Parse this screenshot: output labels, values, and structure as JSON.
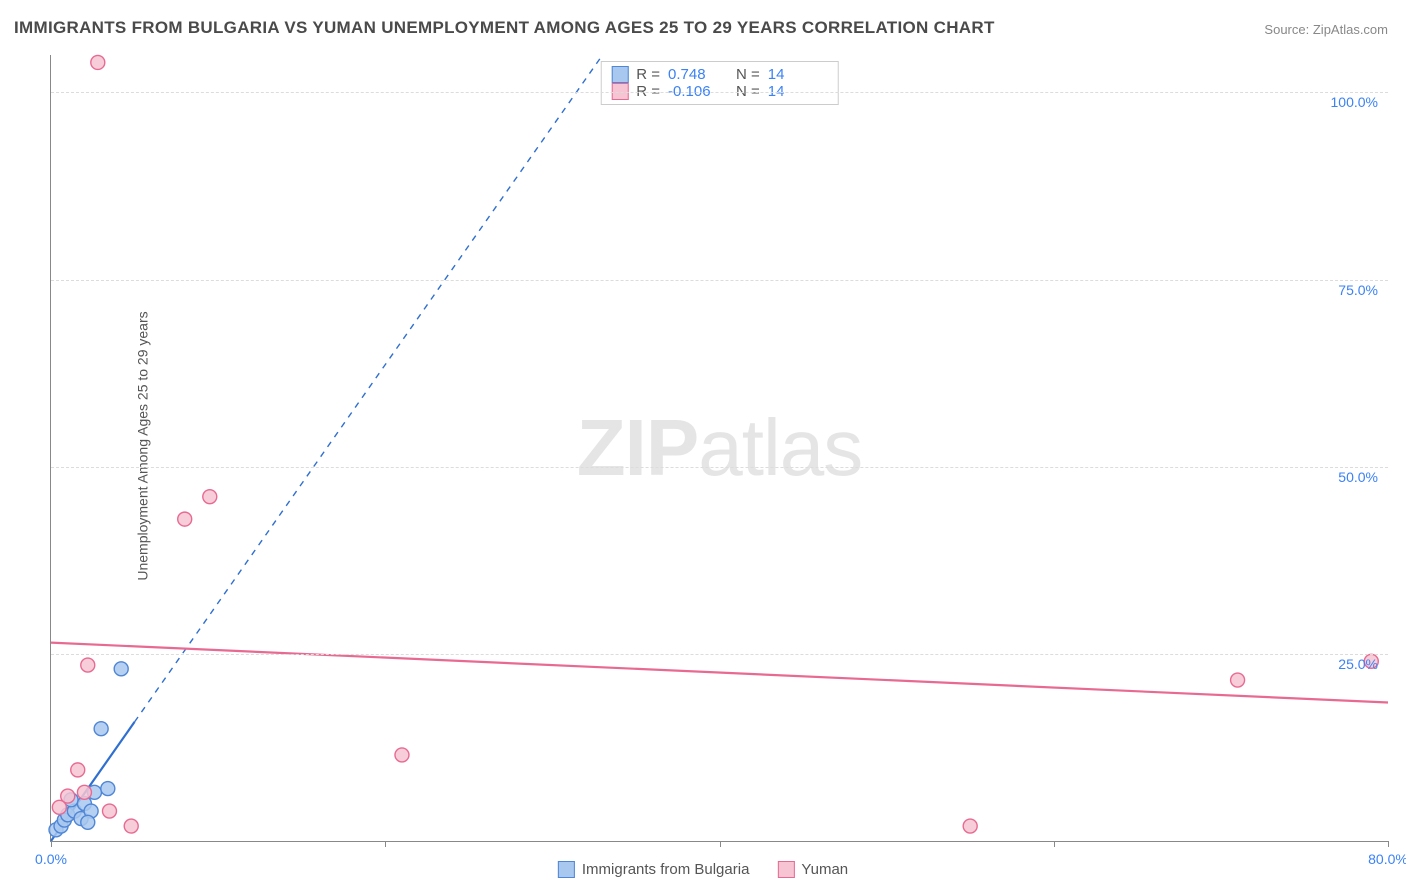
{
  "title": "IMMIGRANTS FROM BULGARIA VS YUMAN UNEMPLOYMENT AMONG AGES 25 TO 29 YEARS CORRELATION CHART",
  "source_label": "Source:",
  "source_site": "ZipAtlas.com",
  "y_axis_label": "Unemployment Among Ages 25 to 29 years",
  "watermark_bold": "ZIP",
  "watermark_light": "atlas",
  "chart": {
    "type": "scatter",
    "xlim": [
      0,
      80
    ],
    "ylim": [
      0,
      105
    ],
    "x_ticks": [
      0,
      20,
      40,
      60,
      80
    ],
    "x_tick_labels": [
      "0.0%",
      "",
      "",
      "",
      "80.0%"
    ],
    "y_ticks": [
      25,
      50,
      75,
      100
    ],
    "y_tick_labels": [
      "25.0%",
      "50.0%",
      "75.0%",
      "100.0%"
    ],
    "grid_color": "#dcdcdc",
    "background_color": "#ffffff",
    "series": [
      {
        "name": "Immigrants from Bulgaria",
        "marker_fill": "#a9c8ef",
        "marker_stroke": "#4f86d6",
        "marker_radius": 7,
        "line_color": "#2f6fd0",
        "line_width": 2.2,
        "line_dash_after_x": 5,
        "R": 0.748,
        "N": 14,
        "trend": {
          "x1": 0,
          "y1": 0,
          "x2": 33,
          "y2": 105
        },
        "points": [
          {
            "x": 0.3,
            "y": 1.5
          },
          {
            "x": 0.6,
            "y": 2.0
          },
          {
            "x": 0.8,
            "y": 2.8
          },
          {
            "x": 1.0,
            "y": 3.5
          },
          {
            "x": 1.4,
            "y": 4.0
          },
          {
            "x": 1.2,
            "y": 5.5
          },
          {
            "x": 1.8,
            "y": 3.0
          },
          {
            "x": 2.0,
            "y": 5.0
          },
          {
            "x": 2.6,
            "y": 6.5
          },
          {
            "x": 2.4,
            "y": 4.0
          },
          {
            "x": 3.4,
            "y": 7.0
          },
          {
            "x": 3.0,
            "y": 15.0
          },
          {
            "x": 4.2,
            "y": 23.0
          },
          {
            "x": 2.2,
            "y": 2.5
          }
        ]
      },
      {
        "name": "Yuman",
        "marker_fill": "#f6c4d2",
        "marker_stroke": "#e86a92",
        "marker_radius": 7,
        "line_color": "#e86a92",
        "line_width": 2.2,
        "R": -0.106,
        "N": 14,
        "trend": {
          "x1": 0,
          "y1": 26.5,
          "x2": 80,
          "y2": 18.5
        },
        "points": [
          {
            "x": 2.8,
            "y": 104
          },
          {
            "x": 9.5,
            "y": 46
          },
          {
            "x": 8.0,
            "y": 43
          },
          {
            "x": 2.2,
            "y": 23.5
          },
          {
            "x": 21.0,
            "y": 11.5
          },
          {
            "x": 1.6,
            "y": 9.5
          },
          {
            "x": 0.5,
            "y": 4.5
          },
          {
            "x": 1.0,
            "y": 6.0
          },
          {
            "x": 4.8,
            "y": 2.0
          },
          {
            "x": 3.5,
            "y": 4.0
          },
          {
            "x": 2.0,
            "y": 6.5
          },
          {
            "x": 55.0,
            "y": 2.0
          },
          {
            "x": 71.0,
            "y": 21.5
          },
          {
            "x": 79.0,
            "y": 24.0
          }
        ]
      }
    ]
  },
  "legend_top": {
    "r_label": "R =",
    "n_label": "N ="
  },
  "legend_bottom_series1": "Immigrants from Bulgaria",
  "legend_bottom_series2": "Yuman"
}
